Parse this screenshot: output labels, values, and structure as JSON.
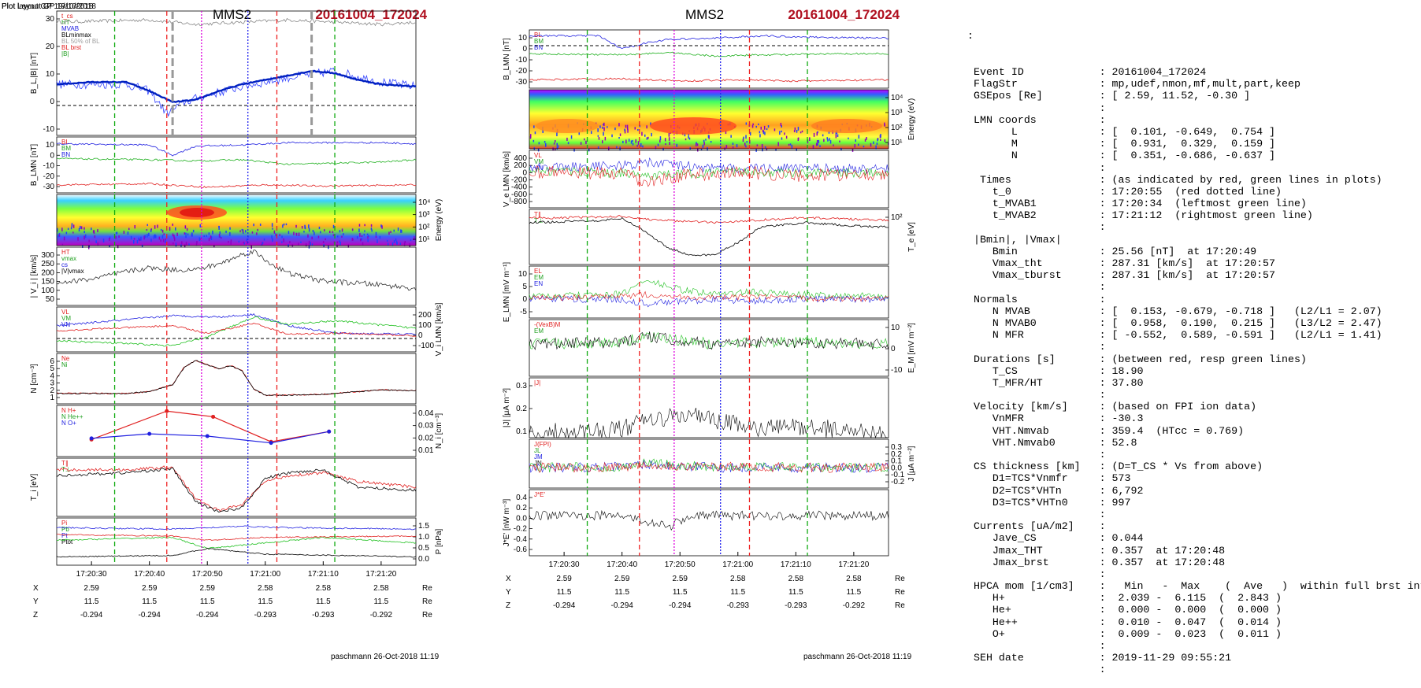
{
  "left_panel": {
    "header": "Plot Layout GP 19/10/2018",
    "title": "MMS2",
    "event": "20161004_172024",
    "footer": "paschmann 26-Oct-2018 11:19",
    "time_ticks": [
      "17:20:30",
      "17:20:40",
      "17:20:50",
      "17:21:00",
      "17:21:10",
      "17:21:20"
    ],
    "pos_rows": [
      {
        "label": "X",
        "values": [
          "2.59",
          "2.59",
          "2.59",
          "2.58",
          "2.58",
          "2.58"
        ],
        "unit": "Re"
      },
      {
        "label": "Y",
        "values": [
          "11.5",
          "11.5",
          "11.5",
          "11.5",
          "11.5",
          "11.5"
        ],
        "unit": "Re"
      },
      {
        "label": "Z",
        "values": [
          "-0.294",
          "-0.294",
          "-0.294",
          "-0.293",
          "-0.293",
          "-0.292"
        ],
        "unit": "Re"
      }
    ],
    "panels": [
      {
        "id": "bl",
        "ylabel": "B_L,|B| [nT]",
        "yticks_left": [
          "30",
          "20",
          "10",
          "0",
          "-10"
        ],
        "legend": [
          "t_cs",
          "HT",
          "MVAB",
          "BLminmax",
          "BL 50% of BL",
          "BL brst",
          "|B|"
        ]
      },
      {
        "id": "blmn",
        "ylabel": "B_LMN [nT]",
        "yticks_left": [
          "10",
          "0",
          "-10",
          "-20",
          "-30"
        ],
        "legend": [
          "BL",
          "BM",
          "BN"
        ]
      },
      {
        "id": "spec",
        "ylabel_right": "Energy (eV)",
        "yticks_right": [
          "10⁴",
          "10³",
          "10²",
          "10¹"
        ]
      },
      {
        "id": "vi",
        "ylabel": "| V_i | [km/s]",
        "yticks_left": [
          "300",
          "250",
          "200",
          "150",
          "100",
          "50"
        ],
        "legend": [
          "HT",
          "vmax",
          "cs",
          "|V|vmax"
        ]
      },
      {
        "id": "vlmn",
        "ylabel_right": "V_i LMN [km/s]",
        "yticks_right": [
          "200",
          "100",
          "0",
          "-100"
        ],
        "legend": [
          "VL",
          "VM",
          "VN"
        ]
      },
      {
        "id": "n",
        "ylabel": "N [cm⁻³]",
        "yticks_left": [
          "6",
          "5",
          "4",
          "3",
          "2",
          "1"
        ],
        "legend": [
          "Ne",
          "Ni"
        ]
      },
      {
        "id": "hpca",
        "ylabel_right": "N_i [cm⁻³]",
        "yticks_right": [
          "0.04",
          "0.03",
          "0.02",
          "0.01"
        ],
        "legend": [
          "N H+",
          "N He++",
          "N O+"
        ]
      },
      {
        "id": "ti",
        "ylabel": "T_i [eV]",
        "legend": [
          "T∥",
          "T⊥"
        ]
      },
      {
        "id": "p",
        "ylabel_right": "P [nPa]",
        "yticks_right": [
          "1.5",
          "1.0",
          "0.5",
          "0.0"
        ],
        "legend": [
          "Pi",
          "Pb",
          "Pt",
          "Ptot"
        ]
      }
    ]
  },
  "mid_panel": {
    "header": "Plot layout GP 19/10/2018",
    "title": "MMS2",
    "event": "20161004_172024",
    "footer": "paschmann 26-Oct-2018 11:19",
    "time_ticks": [
      "17:20:30",
      "17:20:40",
      "17:20:50",
      "17:21:00",
      "17:21:10",
      "17:21:20"
    ],
    "pos_rows": [
      {
        "label": "X",
        "values": [
          "2.59",
          "2.59",
          "2.59",
          "2.58",
          "2.58",
          "2.58"
        ],
        "unit": "Re"
      },
      {
        "label": "Y",
        "values": [
          "11.5",
          "11.5",
          "11.5",
          "11.5",
          "11.5",
          "11.5"
        ],
        "unit": "Re"
      },
      {
        "label": "Z",
        "values": [
          "-0.294",
          "-0.294",
          "-0.294",
          "-0.293",
          "-0.293",
          "-0.292"
        ],
        "unit": "Re"
      }
    ],
    "panels": [
      {
        "id": "blmn",
        "ylabel": "B_LMN [nT]",
        "yticks_left": [
          "10",
          "0",
          "-10",
          "-20",
          "-30"
        ],
        "legend": [
          "BL",
          "BM",
          "BN"
        ]
      },
      {
        "id": "spec_e",
        "ylabel_right": "Energy (eV)",
        "yticks_right": [
          "10⁴",
          "10³",
          "10²",
          "10¹"
        ]
      },
      {
        "id": "ve",
        "ylabel": "V_e LMN [km/s]",
        "yticks_left": [
          "400",
          "200",
          "0",
          "-200",
          "-400",
          "-600",
          "-800"
        ],
        "legend": [
          "VL",
          "VM",
          "VN"
        ]
      },
      {
        "id": "te",
        "ylabel_right": "T_e [eV]",
        "yticks_right": [
          "10²"
        ],
        "legend": [
          "T∥",
          "T⊥"
        ]
      },
      {
        "id": "elmn",
        "ylabel": "E_LMN [mV m⁻¹]",
        "yticks_left": [
          "10",
          "5",
          "0",
          "-5"
        ],
        "legend": [
          "EL",
          "EM",
          "EN"
        ]
      },
      {
        "id": "em",
        "ylabel_right": "E_M [mV m⁻²]",
        "yticks_right": [
          "10",
          "0",
          "-10"
        ],
        "legend": [
          "-(VexB)M",
          "EM"
        ]
      },
      {
        "id": "j",
        "ylabel": "|J| [μA m⁻²]",
        "yticks_left": [
          "0.3",
          "0.2",
          "0.1"
        ],
        "legend": [
          "|J|"
        ]
      },
      {
        "id": "jlmn",
        "ylabel_right": "J [μA m⁻²]",
        "yticks_right": [
          "0.3",
          "0.2",
          "0.1",
          "0.0",
          "-0.1",
          "-0.2"
        ],
        "legend": [
          "J(FPI)",
          "JL",
          "JM",
          "JN"
        ]
      },
      {
        "id": "je",
        "ylabel": "J*E' [nW m⁻³]",
        "yticks_left": [
          "0.4",
          "0.2",
          "0.0",
          "-0.2",
          "-0.4",
          "-0.6"
        ],
        "legend": [
          "J*E'"
        ]
      }
    ]
  },
  "chart_data": {
    "type": "line",
    "x_range": [
      "17:20:24",
      "17:21:26"
    ],
    "markers": {
      "t_0": "17:20:55",
      "t_MVAB1": "17:20:34",
      "t_MVAB2": "17:21:12",
      "magenta_line": "17:20:49",
      "blue_dotted_line": "17:20:57",
      "red_dashed_left": "17:20:43",
      "red_dashed_right": "17:21:02"
    },
    "series_samples": {
      "B_L_smoothed_nT": {
        "t": [
          24,
          30,
          36,
          40,
          44,
          48,
          52,
          56,
          60,
          64,
          68,
          72,
          76,
          80,
          86
        ],
        "v": [
          5,
          6,
          6,
          2,
          -3,
          -2,
          2,
          5,
          7,
          9,
          11,
          10,
          7,
          5,
          4
        ]
      },
      "N_cm3": {
        "t": [
          24,
          30,
          36,
          40,
          44,
          46,
          48,
          50,
          52,
          54,
          56,
          58,
          60,
          64,
          70,
          80,
          86
        ],
        "v": [
          2,
          2,
          2,
          2.2,
          3,
          5,
          5.8,
          5.3,
          4.8,
          5.2,
          4.6,
          2.5,
          1.8,
          1.8,
          1.9,
          2.4,
          2.3
        ]
      },
      "HPCA_Hplus": {
        "t": [
          30,
          43,
          51,
          61,
          71
        ],
        "v": [
          0.015,
          0.04,
          0.035,
          0.013,
          0.022
        ]
      },
      "HPCA_Oplus": {
        "t": [
          30,
          40,
          50,
          61,
          71
        ],
        "v": [
          0.016,
          0.02,
          0.018,
          0.012,
          0.022
        ]
      },
      "Vi_mag_kms": {
        "t": [
          24,
          30,
          36,
          40,
          44,
          48,
          52,
          56,
          58,
          60,
          64,
          70,
          80,
          86
        ],
        "v": [
          120,
          140,
          180,
          200,
          190,
          190,
          220,
          270,
          290,
          240,
          170,
          130,
          110,
          90
        ]
      }
    }
  },
  "info": {
    "lead": ":",
    "rows": [
      {
        "k": "Event ID",
        "v": ": 20161004_172024"
      },
      {
        "k": "FlagStr",
        "v": ": mp,udef,nmon,mf,mult,part,keep"
      },
      {
        "k": "GSEpos [Re]",
        "v": ": [ 2.59, 11.52, -0.30 ]"
      },
      {
        "k": "",
        "v": ":"
      },
      {
        "k": "LMN coords",
        "v": ":"
      },
      {
        "k": "      L",
        "v": ": [  0.101, -0.649,  0.754 ]"
      },
      {
        "k": "      M",
        "v": ": [  0.931,  0.329,  0.159 ]"
      },
      {
        "k": "      N",
        "v": ": [  0.351, -0.686, -0.637 ]"
      },
      {
        "k": "",
        "v": ":"
      },
      {
        "k": " Times",
        "v": ": (as indicated by red, green lines in plots)"
      },
      {
        "k": "   t_0",
        "v": ": 17:20:55  (red dotted line)"
      },
      {
        "k": "   t_MVAB1",
        "v": ": 17:20:34  (leftmost green line)"
      },
      {
        "k": "   t_MVAB2",
        "v": ": 17:21:12  (rightmost green line)"
      },
      {
        "k": "",
        "v": ":"
      },
      {
        "k": "|Bmin|, |Vmax|",
        "v": ""
      },
      {
        "k": "   Bmin",
        "v": ": 25.56 [nT]  at 17:20:49"
      },
      {
        "k": "   Vmax_tht",
        "v": ": 287.31 [km/s]  at 17:20:57"
      },
      {
        "k": "   Vmax_tburst",
        "v": ": 287.31 [km/s]  at 17:20:57"
      },
      {
        "k": "",
        "v": ":"
      },
      {
        "k": "Normals",
        "v": ":"
      },
      {
        "k": "   N MVAB",
        "v": ": [  0.153, -0.679, -0.718 ]   (L2/L1 = 2.07)"
      },
      {
        "k": "   N MVAB0",
        "v": ": [  0.958,  0.190,  0.215 ]   (L3/L2 = 2.47)"
      },
      {
        "k": "   N MFR",
        "v": ": [ -0.552,  0.589, -0.591 ]   (L2/L1 = 1.41)"
      },
      {
        "k": "",
        "v": ":"
      },
      {
        "k": "Durations [s]",
        "v": ": (between red, resp green lines)"
      },
      {
        "k": "   T_CS",
        "v": ": 18.90"
      },
      {
        "k": "   T_MFR/HT",
        "v": ": 37.80"
      },
      {
        "k": "",
        "v": ":"
      },
      {
        "k": "Velocity [km/s]",
        "v": ": (based on FPI ion data)"
      },
      {
        "k": "   VnMFR",
        "v": ": -30.3"
      },
      {
        "k": "   VHT.Nmvab",
        "v": ": 359.4  (HTcc = 0.769)"
      },
      {
        "k": "   VHT.Nmvab0",
        "v": ": 52.8"
      },
      {
        "k": "",
        "v": ":"
      },
      {
        "k": "CS thickness [km]",
        "v": ": (D=T_CS * Vs from above)"
      },
      {
        "k": "   D1=TCS*Vnmfr",
        "v": ": 573"
      },
      {
        "k": "   D2=TCS*VHTn",
        "v": ": 6,792"
      },
      {
        "k": "   D3=TCS*VHTn0",
        "v": ": 997"
      },
      {
        "k": "",
        "v": ":"
      },
      {
        "k": "Currents [uA/m2]",
        "v": ":"
      },
      {
        "k": "   Jave_CS",
        "v": ": 0.044"
      },
      {
        "k": "   Jmax_THT",
        "v": ": 0.357  at 17:20:48"
      },
      {
        "k": "   Jmax_brst",
        "v": ": 0.357  at 17:20:48"
      },
      {
        "k": "",
        "v": ":"
      },
      {
        "k": "HPCA mom [1/cm3]",
        "v": ":   Min   -  Max    (  Ave   )  within full brst int"
      },
      {
        "k": "   H+",
        "v": ":  2.039 -  6.115  (  2.843 )"
      },
      {
        "k": "   He+",
        "v": ":  0.000 -  0.000  (  0.000 )"
      },
      {
        "k": "   He++",
        "v": ":  0.010 -  0.047  (  0.014 )"
      },
      {
        "k": "   O+",
        "v": ":  0.009 -  0.023  (  0.011 )"
      },
      {
        "k": "",
        "v": ":"
      },
      {
        "k": "SEH date",
        "v": ": 2019-11-29 09:55:21"
      },
      {
        "k": "",
        "v": ":"
      }
    ]
  }
}
